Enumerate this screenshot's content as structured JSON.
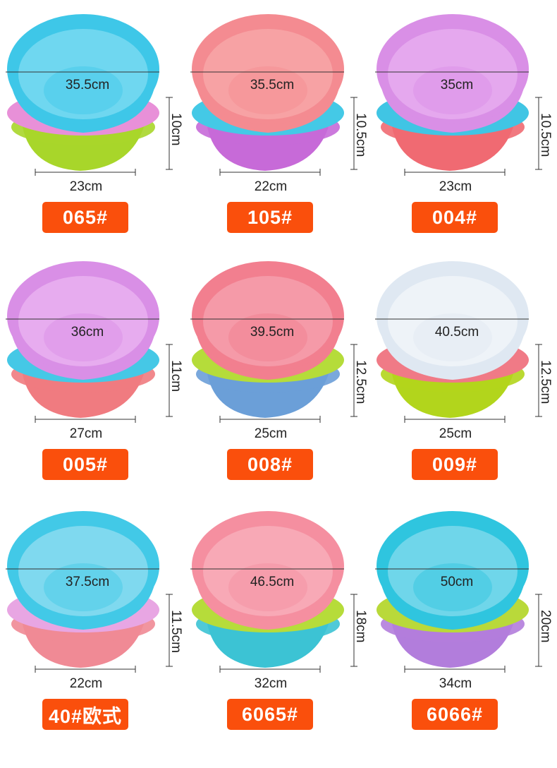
{
  "products": [
    {
      "model": "065#",
      "diameter": "35.5cm",
      "base": "23cm",
      "height": "10cm",
      "colors": {
        "top": "#3ec7e8",
        "mid": "#e890d8",
        "bottom": "#a8d62a",
        "inner": "#6fd7f0"
      }
    },
    {
      "model": "105#",
      "diameter": "35.5cm",
      "base": "22cm",
      "height": "10.5cm",
      "colors": {
        "top": "#f48b91",
        "mid": "#44c9e6",
        "bottom": "#c76ad8",
        "inner": "#f7a2a4"
      }
    },
    {
      "model": "004#",
      "diameter": "35cm",
      "base": "23cm",
      "height": "10.5cm",
      "colors": {
        "top": "#d98fe6",
        "mid": "#40c5e4",
        "bottom": "#f06a72",
        "inner": "#e5a8ee"
      }
    },
    {
      "model": "005#",
      "diameter": "36cm",
      "base": "27cm",
      "height": "11cm",
      "colors": {
        "top": "#d98fe6",
        "mid": "#45c8e6",
        "bottom": "#f07b80",
        "inner": "#e7acef"
      }
    },
    {
      "model": "008#",
      "diameter": "39.5cm",
      "base": "25cm",
      "height": "12.5cm",
      "colors": {
        "top": "#f27f8f",
        "mid": "#b5dc3a",
        "bottom": "#6b9fd8",
        "inner": "#f59aa8"
      }
    },
    {
      "model": "009#",
      "diameter": "40.5cm",
      "base": "25cm",
      "height": "12.5cm",
      "colors": {
        "top": "#dfe8f2",
        "mid": "#f07a86",
        "bottom": "#b2d51c",
        "inner": "#eef3f8"
      }
    },
    {
      "model": "40#欧式",
      "diameter": "37.5cm",
      "base": "22cm",
      "height": "11.5cm",
      "colors": {
        "top": "#42c9e7",
        "mid": "#e8a6e3",
        "bottom": "#f08a95",
        "inner": "#7fd9ef"
      }
    },
    {
      "model": "6065#",
      "diameter": "46.5cm",
      "base": "32cm",
      "height": "18cm",
      "colors": {
        "top": "#f58fa0",
        "mid": "#b6dc3a",
        "bottom": "#3cc3d4",
        "inner": "#f8a9b6"
      }
    },
    {
      "model": "6066#",
      "diameter": "50cm",
      "base": "34cm",
      "height": "20cm",
      "colors": {
        "top": "#2fc5df",
        "mid": "#b9d93a",
        "bottom": "#b27ddc",
        "inner": "#6fd6ea"
      }
    }
  ]
}
